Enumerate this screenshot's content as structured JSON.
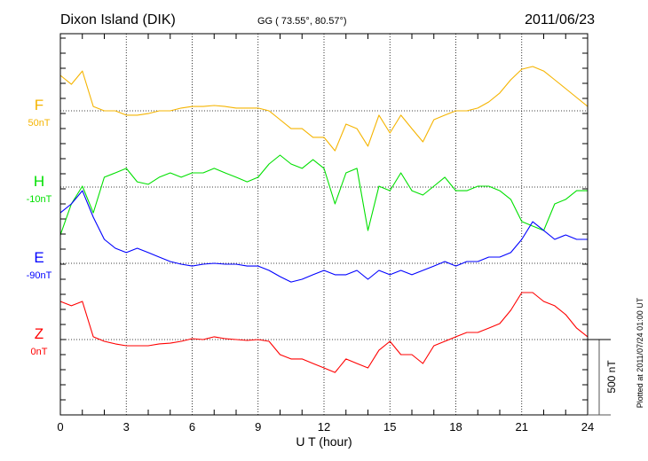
{
  "header": {
    "station": "Dixon Island (DIK)",
    "coords": "GG ( 73.55°,  80.57°)",
    "date": "2011/06/23"
  },
  "footer_note": "Plotted at 2011/07/24 01:00 UT",
  "chart_data": {
    "type": "line",
    "title": "Dixon Island (DIK)",
    "xlabel": "U T (hour)",
    "ylabel": "",
    "xlim": [
      0,
      24
    ],
    "xticks": [
      0,
      3,
      6,
      9,
      12,
      15,
      18,
      21,
      24
    ],
    "xtick_labels": [
      "0",
      "3",
      "6",
      "9",
      "12",
      "15",
      "18",
      "21",
      "24"
    ],
    "scale_bar": {
      "value_nT": 500,
      "label": "500 nT"
    },
    "grid": true,
    "x": [
      0,
      0.5,
      1,
      1.5,
      2,
      2.5,
      3,
      3.5,
      4,
      4.5,
      5,
      5.5,
      6,
      6.5,
      7,
      7.5,
      8,
      8.5,
      9,
      9.5,
      10,
      10.5,
      11,
      11.5,
      12,
      12.5,
      13,
      13.5,
      14,
      14.5,
      15,
      15.5,
      16,
      16.5,
      17,
      17.5,
      18,
      18.5,
      19,
      19.5,
      20,
      20.5,
      21,
      21.5,
      22,
      22.5,
      23,
      23.5,
      24
    ],
    "series": [
      {
        "name": "F",
        "baseline_label": "50nT",
        "color": "#f5b400",
        "values": [
          235,
          176,
          264,
          29,
          0,
          0,
          -29,
          -29,
          -18,
          0,
          0,
          18,
          29,
          29,
          35,
          29,
          18,
          18,
          18,
          0,
          -59,
          -118,
          -118,
          -176,
          -176,
          -265,
          -88,
          -118,
          -235,
          -29,
          -147,
          -29,
          -118,
          -206,
          -59,
          -29,
          0,
          0,
          18,
          59,
          118,
          206,
          276,
          294,
          264,
          206,
          147,
          88,
          29
        ]
      },
      {
        "name": "H",
        "baseline_label": "-10nT",
        "color": "#00e000",
        "values": [
          -318,
          -112,
          6,
          -171,
          65,
          94,
          124,
          35,
          18,
          65,
          94,
          65,
          94,
          94,
          124,
          94,
          65,
          35,
          65,
          153,
          212,
          153,
          124,
          182,
          124,
          -112,
          94,
          124,
          -288,
          6,
          -24,
          94,
          -24,
          -53,
          6,
          65,
          -24,
          -24,
          6,
          6,
          -24,
          -82,
          -229,
          -259,
          -288,
          -112,
          -82,
          -24,
          -24
        ]
      },
      {
        "name": "E",
        "baseline_label": "-90nT",
        "color": "#0000ff",
        "values": [
          335,
          394,
          482,
          306,
          159,
          100,
          71,
          100,
          71,
          41,
          12,
          -6,
          -18,
          -6,
          0,
          -6,
          -6,
          -18,
          -18,
          -47,
          -88,
          -124,
          -106,
          -76,
          -47,
          -76,
          -76,
          -47,
          -106,
          -47,
          -76,
          -47,
          -76,
          -47,
          -18,
          12,
          -18,
          12,
          12,
          41,
          41,
          71,
          159,
          276,
          218,
          159,
          188,
          159,
          159
        ]
      },
      {
        "name": "Z",
        "baseline_label": "0nT",
        "color": "#ff0000",
        "values": [
          253,
          224,
          253,
          18,
          -12,
          -29,
          -41,
          -41,
          -41,
          -29,
          -24,
          -12,
          6,
          0,
          18,
          6,
          0,
          -6,
          0,
          -12,
          -100,
          -129,
          -129,
          -159,
          -188,
          -218,
          -129,
          -159,
          -188,
          -71,
          -12,
          -100,
          -100,
          -159,
          -41,
          -12,
          18,
          47,
          47,
          76,
          106,
          194,
          312,
          312,
          253,
          224,
          165,
          76,
          18
        ]
      }
    ]
  }
}
